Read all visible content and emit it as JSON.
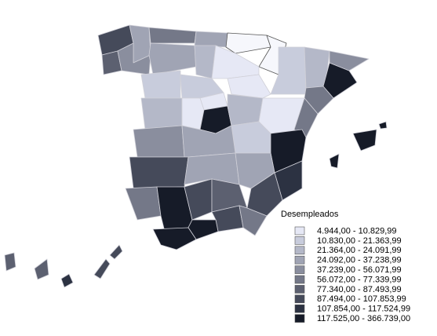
{
  "legend": {
    "title": "Desempleados",
    "entries": [
      "4.944,00 - 10.829,99",
      "10.830,00 - 21.363,99",
      "21.364,00 - 24.091,99",
      "24.092,00 - 37.238,99",
      "37.239,00 - 56.071,99",
      "56.072,00 - 77.339,99",
      "77.340,00 - 87.493,99",
      "87.494,00 - 107.853,99",
      "107.854,00 - 117.524,99",
      "117.525,00 - 366.739,00"
    ]
  }
}
